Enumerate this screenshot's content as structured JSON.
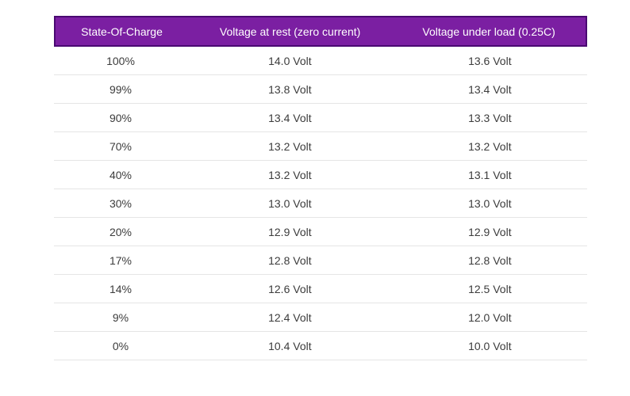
{
  "chart_data": {
    "type": "table",
    "title": "",
    "columns": [
      "State-Of-Charge",
      "Voltage at rest (zero current)",
      "Voltage under load (0.25C)"
    ],
    "rows": [
      [
        "100%",
        "14.0 Volt",
        "13.6 Volt"
      ],
      [
        "99%",
        "13.8 Volt",
        "13.4 Volt"
      ],
      [
        "90%",
        "13.4 Volt",
        "13.3 Volt"
      ],
      [
        "70%",
        "13.2 Volt",
        "13.2 Volt"
      ],
      [
        "40%",
        "13.2 Volt",
        "13.1 Volt"
      ],
      [
        "30%",
        "13.0 Volt",
        "13.0 Volt"
      ],
      [
        "20%",
        "12.9 Volt",
        "12.9 Volt"
      ],
      [
        "17%",
        "12.8 Volt",
        "12.8 Volt"
      ],
      [
        "14%",
        "12.6 Volt",
        "12.5 Volt"
      ],
      [
        "9%",
        "12.4 Volt",
        "12.0 Volt"
      ],
      [
        "0%",
        "10.4 Volt",
        "10.0 Volt"
      ]
    ]
  },
  "colors": {
    "header_bg": "#7B1FA2",
    "header_border": "#4A0972",
    "header_text": "#FFFFFF",
    "row_text": "#3C3C3C",
    "separator": "#E5E5E5"
  }
}
